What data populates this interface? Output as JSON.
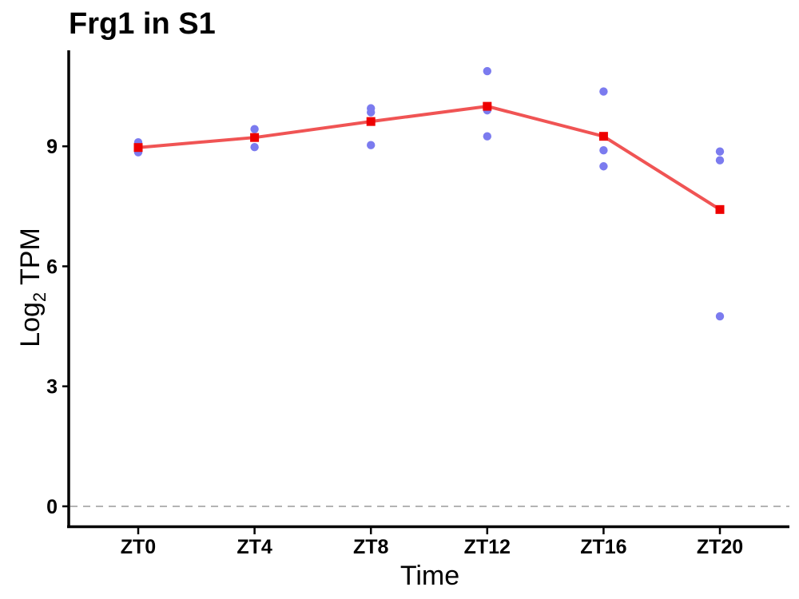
{
  "chart_data": {
    "type": "line",
    "title": "Frg1 in S1",
    "xlabel": "Time",
    "ylabel": {
      "base": "Log",
      "subscript": "2",
      "suffix": " TPM"
    },
    "categories": [
      "ZT0",
      "ZT4",
      "ZT8",
      "ZT12",
      "ZT16",
      "ZT20"
    ],
    "ylim": [
      -0.5,
      11.4
    ],
    "yticks": [
      "0",
      "3",
      "6",
      "9"
    ],
    "grid": false,
    "reference_line": {
      "y": 0,
      "style": "dashed",
      "color": "#b3b3b3"
    },
    "series": [
      {
        "kind": "points",
        "color": "#7b7bef",
        "points": [
          {
            "x": "ZT0",
            "y": 9.1
          },
          {
            "x": "ZT0",
            "y": 9.0
          },
          {
            "x": "ZT0",
            "y": 8.85
          },
          {
            "x": "ZT4",
            "y": 9.43
          },
          {
            "x": "ZT4",
            "y": 8.98
          },
          {
            "x": "ZT8",
            "y": 9.95
          },
          {
            "x": "ZT8",
            "y": 9.85
          },
          {
            "x": "ZT8",
            "y": 9.03
          },
          {
            "x": "ZT12",
            "y": 10.88
          },
          {
            "x": "ZT12",
            "y": 9.9
          },
          {
            "x": "ZT12",
            "y": 9.25
          },
          {
            "x": "ZT16",
            "y": 10.37
          },
          {
            "x": "ZT16",
            "y": 8.9
          },
          {
            "x": "ZT16",
            "y": 8.5
          },
          {
            "x": "ZT20",
            "y": 8.87
          },
          {
            "x": "ZT20",
            "y": 8.65
          },
          {
            "x": "ZT20",
            "y": 4.75
          }
        ]
      },
      {
        "kind": "line",
        "color": "#f05454",
        "marker_color": "#ee0000",
        "values": [
          8.97,
          9.22,
          9.62,
          10.0,
          9.25,
          7.42
        ]
      }
    ]
  }
}
